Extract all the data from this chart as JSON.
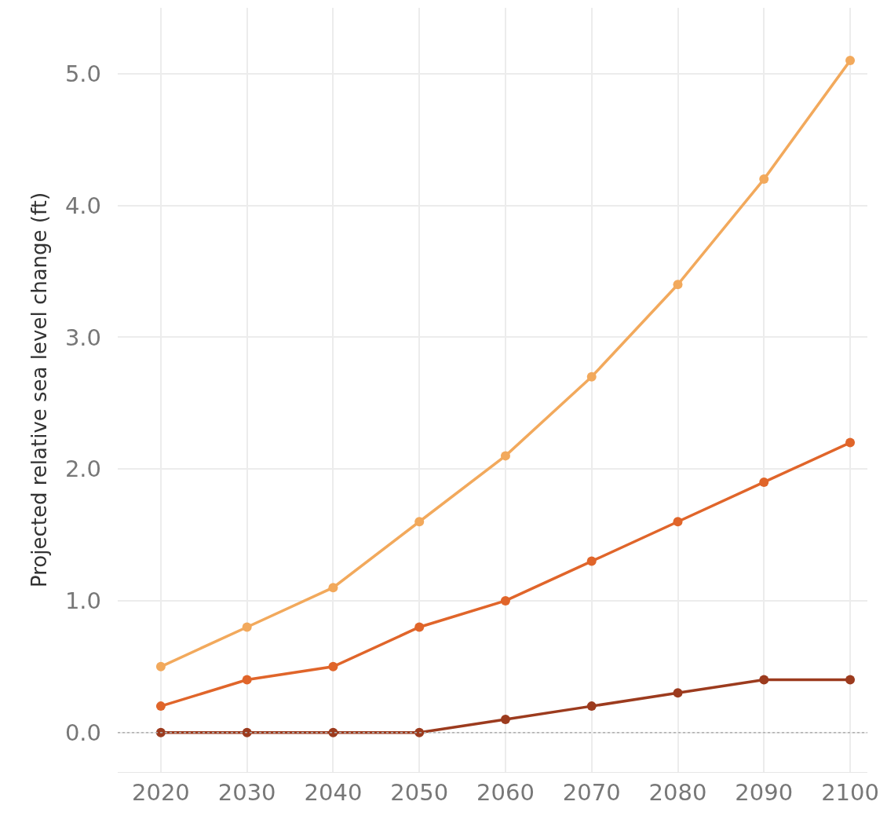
{
  "chart_data": {
    "type": "line",
    "ylabel": "Projected relative sea level change (ft)",
    "x": [
      2020,
      2030,
      2040,
      2050,
      2060,
      2070,
      2080,
      2090,
      2100
    ],
    "series": [
      {
        "color": "#f2a95c",
        "values": [
          0.5,
          0.8,
          1.1,
          1.6,
          2.1,
          2.7,
          3.4,
          4.2,
          5.1
        ]
      },
      {
        "color": "#e0652a",
        "values": [
          0.2,
          0.4,
          0.5,
          0.8,
          1.0,
          1.3,
          1.6,
          1.9,
          2.2
        ]
      },
      {
        "color": "#9c3b1e",
        "values": [
          0,
          0,
          0,
          0,
          0.1,
          0.2,
          0.3,
          0.4,
          0.4
        ]
      }
    ],
    "xlim": [
      2015,
      2102
    ],
    "xticks": [
      2020,
      2030,
      2040,
      2050,
      2060,
      2070,
      2080,
      2090,
      2100
    ],
    "ylim": [
      -0.3,
      5.5
    ],
    "yticks": [
      {
        "value": 0,
        "label": "0.0"
      },
      {
        "value": 1,
        "label": "1.0"
      },
      {
        "value": 2,
        "label": "2.0"
      },
      {
        "value": 3,
        "label": "3.0"
      },
      {
        "value": 4,
        "label": "4.0"
      },
      {
        "value": 5,
        "label": "5.0"
      }
    ],
    "ref_lines": [
      {
        "axis": "y",
        "value": 0,
        "color": "#b0b0b0",
        "line_style": "dotted"
      }
    ],
    "grid": true,
    "marker": "circle",
    "line_style": "solid"
  }
}
